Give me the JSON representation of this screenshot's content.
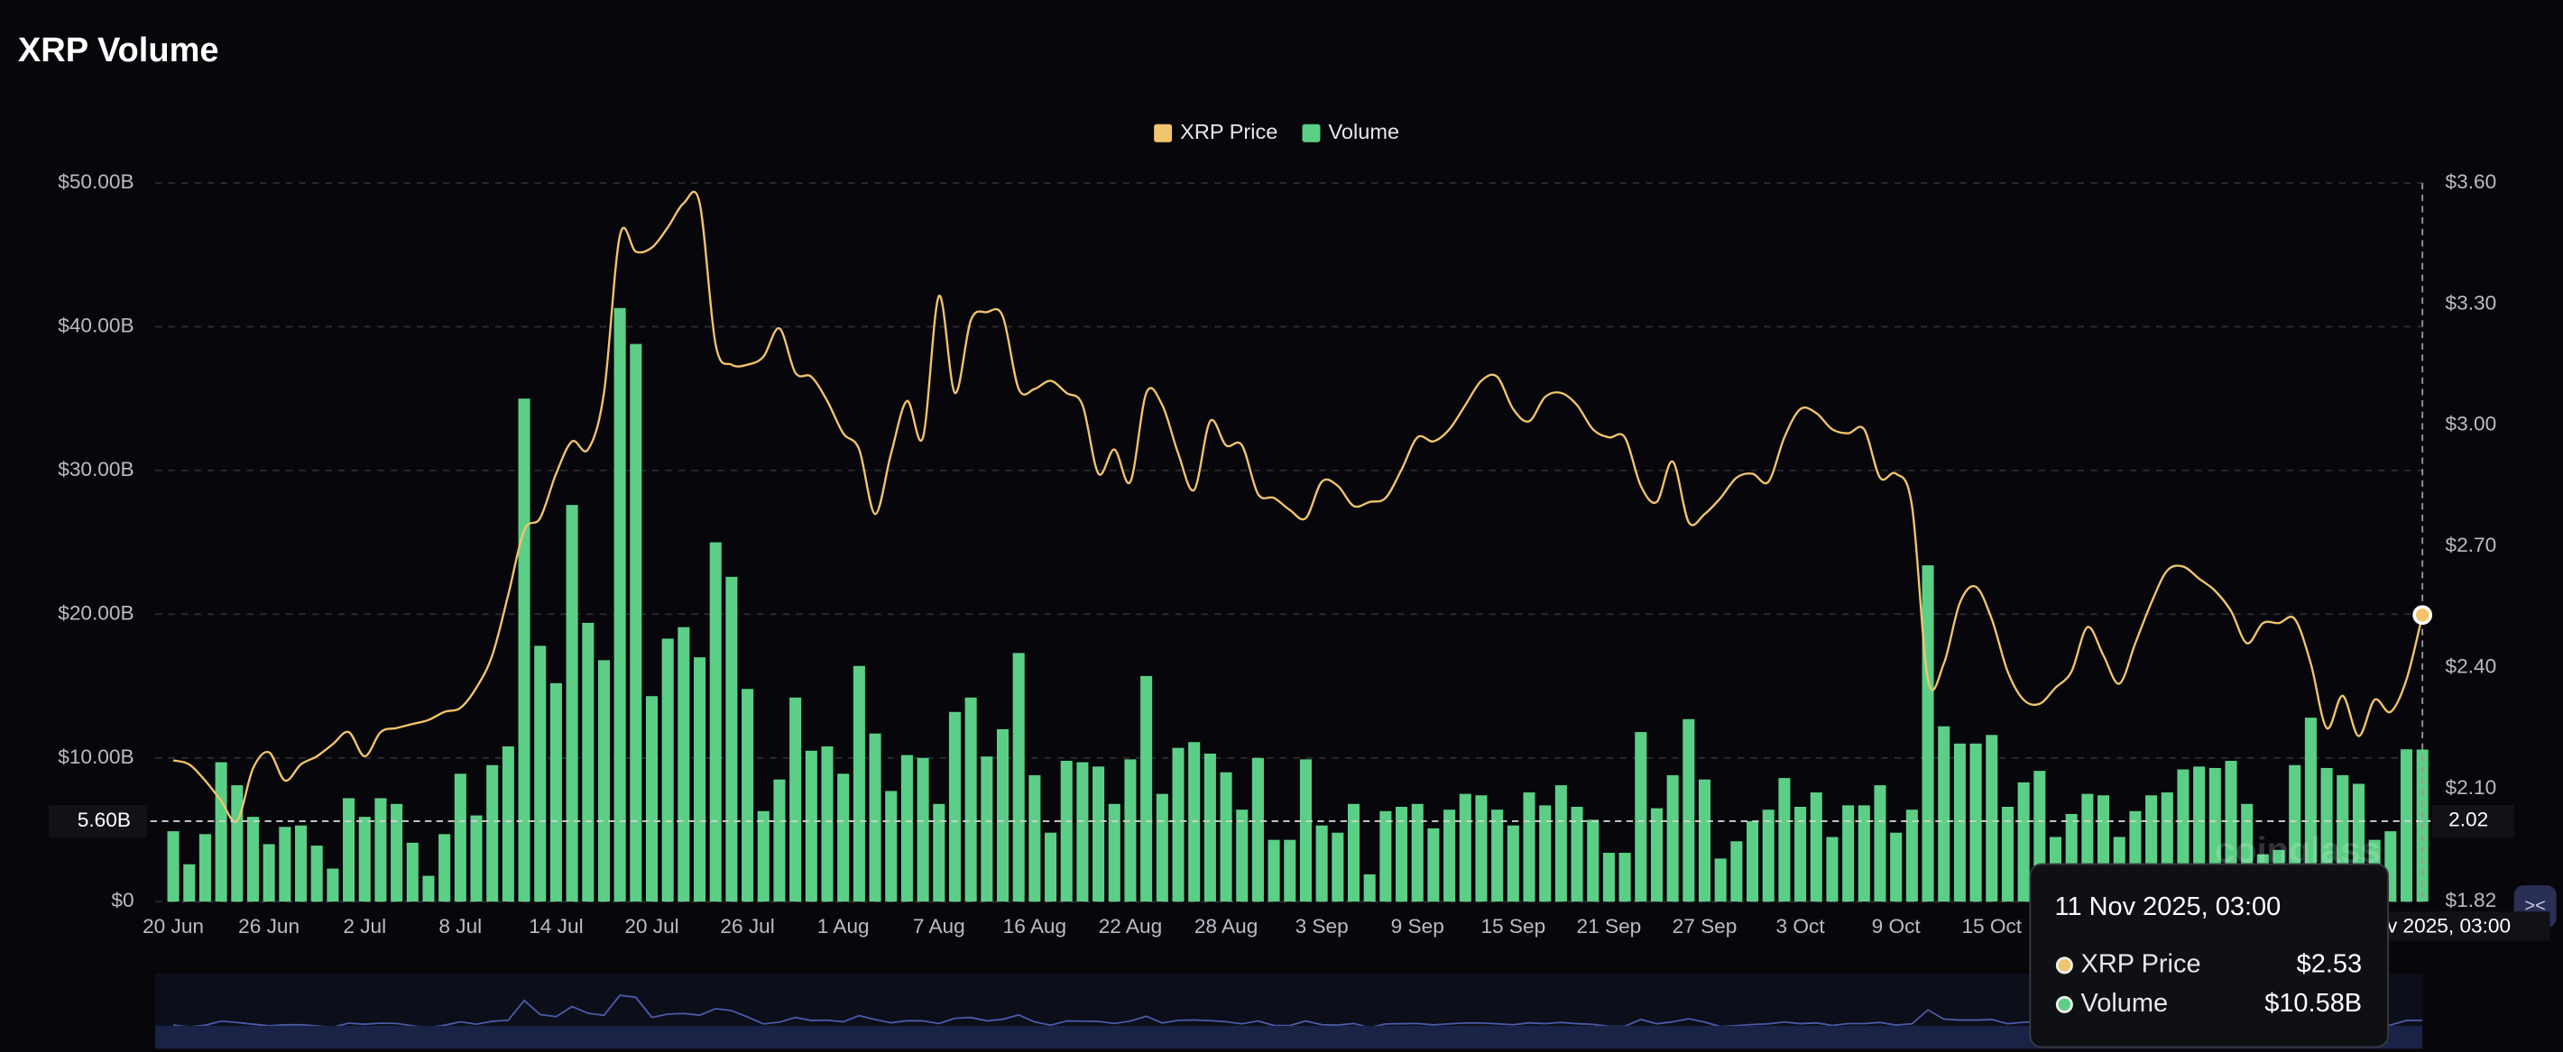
{
  "chart_data": {
    "type": "combo",
    "title": "XRP Volume",
    "categories": [
      "20 Jun",
      null,
      null,
      null,
      null,
      null,
      "26 Jun",
      null,
      null,
      null,
      null,
      null,
      "2 Jul",
      null,
      null,
      null,
      null,
      null,
      "8 Jul",
      null,
      null,
      null,
      null,
      null,
      "14 Jul",
      null,
      null,
      null,
      null,
      null,
      "20 Jul",
      null,
      null,
      null,
      null,
      null,
      "26 Jul",
      null,
      null,
      null,
      null,
      null,
      "1 Aug",
      null,
      null,
      null,
      null,
      null,
      "7 Aug",
      null,
      null,
      null,
      null,
      null,
      "16 Aug",
      null,
      null,
      null,
      null,
      null,
      "22 Aug",
      null,
      null,
      null,
      null,
      null,
      "28 Aug",
      null,
      null,
      null,
      null,
      null,
      "3 Sep",
      null,
      null,
      null,
      null,
      null,
      "9 Sep",
      null,
      null,
      null,
      null,
      null,
      "15 Sep",
      null,
      null,
      null,
      null,
      null,
      "21 Sep",
      null,
      null,
      null,
      null,
      null,
      "27 Sep",
      null,
      null,
      null,
      null,
      null,
      "3 Oct",
      null,
      null,
      null,
      null,
      null,
      "9 Oct",
      null,
      null,
      null,
      null,
      null,
      "15 Oct",
      null,
      null,
      null,
      null,
      null,
      null,
      null,
      null,
      null,
      null,
      null,
      null,
      null,
      null,
      null,
      null,
      null,
      null,
      null,
      null,
      null,
      null,
      null,
      null,
      null,
      null,
      null
    ],
    "series": [
      {
        "name": "XRP Price",
        "type": "line",
        "axis": "y2",
        "color": "#f2c46d",
        "values": [
          2.17,
          2.16,
          2.12,
          2.07,
          2.02,
          2.15,
          2.19,
          2.12,
          2.16,
          2.18,
          2.21,
          2.24,
          2.18,
          2.24,
          2.25,
          2.26,
          2.27,
          2.29,
          2.3,
          2.35,
          2.43,
          2.58,
          2.74,
          2.77,
          2.88,
          2.96,
          2.94,
          3.08,
          3.47,
          3.43,
          3.44,
          3.49,
          3.55,
          3.55,
          3.2,
          3.15,
          3.15,
          3.17,
          3.24,
          3.13,
          3.12,
          3.06,
          2.98,
          2.94,
          2.78,
          2.93,
          3.06,
          2.97,
          3.32,
          3.08,
          3.26,
          3.28,
          3.27,
          3.09,
          3.09,
          3.11,
          3.08,
          3.05,
          2.88,
          2.94,
          2.86,
          3.08,
          3.05,
          2.93,
          2.84,
          3.01,
          2.95,
          2.95,
          2.83,
          2.82,
          2.79,
          2.77,
          2.86,
          2.85,
          2.8,
          2.81,
          2.82,
          2.89,
          2.97,
          2.96,
          2.99,
          3.05,
          3.11,
          3.12,
          3.04,
          3.01,
          3.07,
          3.08,
          3.05,
          2.99,
          2.97,
          2.97,
          2.85,
          2.81,
          2.91,
          2.76,
          2.78,
          2.82,
          2.87,
          2.88,
          2.86,
          2.97,
          3.04,
          3.03,
          2.99,
          2.98,
          2.99,
          2.87,
          2.88,
          2.8,
          2.37,
          2.41,
          2.56,
          2.6,
          2.52,
          2.39,
          2.32,
          2.31,
          2.35,
          2.39,
          2.5,
          2.43,
          2.36,
          2.46,
          2.56,
          2.64,
          2.65,
          2.62,
          2.59,
          2.54,
          2.46,
          2.51,
          2.51,
          2.52,
          2.41,
          2.25,
          2.33,
          2.23,
          2.32,
          2.29,
          2.37,
          2.53
        ]
      },
      {
        "name": "Volume",
        "type": "bar",
        "color": "#5ccf87",
        "values": [
          4.9,
          2.6,
          4.7,
          9.7,
          8.1,
          5.9,
          4.0,
          5.2,
          5.3,
          3.9,
          2.3,
          7.2,
          5.9,
          7.2,
          6.8,
          4.1,
          1.8,
          4.7,
          8.9,
          6.0,
          9.5,
          10.8,
          35.0,
          17.8,
          15.2,
          27.6,
          19.4,
          16.8,
          41.3,
          38.8,
          14.3,
          18.3,
          19.1,
          17.0,
          25.0,
          22.6,
          14.8,
          6.3,
          8.5,
          14.2,
          10.5,
          10.8,
          8.9,
          16.4,
          11.7,
          7.7,
          10.2,
          10.0,
          6.8,
          13.2,
          14.2,
          10.1,
          12.0,
          17.3,
          8.8,
          4.8,
          9.8,
          9.7,
          9.4,
          6.8,
          9.9,
          15.7,
          7.5,
          10.7,
          11.1,
          10.3,
          9.0,
          6.4,
          10.0,
          4.3,
          4.3,
          9.9,
          5.3,
          4.8,
          6.8,
          1.9,
          6.3,
          6.6,
          6.8,
          5.1,
          6.4,
          7.5,
          7.4,
          6.4,
          5.3,
          7.6,
          6.7,
          8.1,
          6.6,
          5.7,
          3.4,
          3.4,
          11.8,
          6.5,
          8.8,
          12.7,
          8.5,
          3.0,
          4.2,
          5.6,
          6.4,
          8.6,
          6.6,
          7.6,
          4.5,
          6.7,
          6.7,
          8.1,
          4.8,
          6.4,
          23.4,
          12.2,
          11.0,
          11.0,
          11.6,
          6.6,
          8.3,
          9.1,
          4.5,
          6.1,
          7.5,
          7.4,
          4.5,
          6.3,
          7.4,
          7.6,
          9.2,
          9.4,
          9.3,
          9.8,
          6.8,
          3.3,
          3.6,
          9.5,
          12.8,
          9.3,
          8.8,
          8.2,
          4.3,
          4.9,
          10.6,
          10.58
        ]
      }
    ],
    "ylim": [
      0,
      50
    ],
    "yticks": [
      {
        "value": 0,
        "label": "$0"
      },
      {
        "value": 10,
        "label": "$10.00B"
      },
      {
        "value": 20,
        "label": "$20.00B"
      },
      {
        "value": 30,
        "label": "$30.00B"
      },
      {
        "value": 40,
        "label": "$40.00B"
      },
      {
        "value": 50,
        "label": "$50.00B"
      }
    ],
    "y2lim": [
      1.82,
      3.6
    ],
    "y2ticks": [
      {
        "value": 1.82,
        "label": "$1.82"
      },
      {
        "value": 2.1,
        "label": "$2.10"
      },
      {
        "value": 2.4,
        "label": "$2.40"
      },
      {
        "value": 2.7,
        "label": "$2.70"
      },
      {
        "value": 3.0,
        "label": "$3.00"
      },
      {
        "value": 3.3,
        "label": "$3.30"
      },
      {
        "value": 3.6,
        "label": "$3.60"
      }
    ],
    "grid": true,
    "legend": "top",
    "crosshair": {
      "y": {
        "value": 5.6,
        "label": "5.60B"
      },
      "y2": 2.02
    },
    "tooltip": {
      "title": "11 Nov 2025, 03:00",
      "value_labels": [
        "$2.53",
        "$10.58B"
      ]
    },
    "watermark": "coinglass"
  }
}
